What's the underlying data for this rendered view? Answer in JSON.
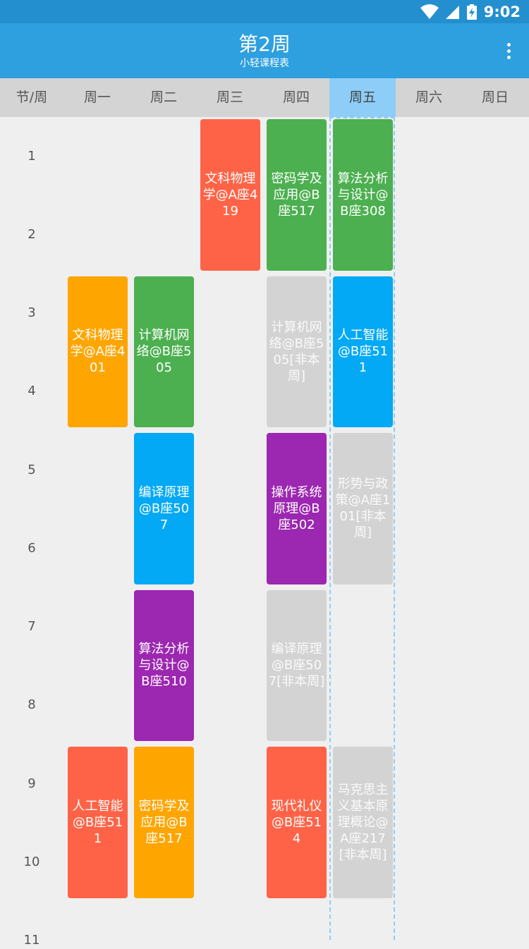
{
  "status_bar": {
    "time": "9:02",
    "icons": [
      "wifi-icon",
      "signal-icon",
      "battery-charging-icon"
    ]
  },
  "app_bar": {
    "title": "第2周",
    "subtitle": "小轻课程表",
    "menu_icon": "more-vert-icon"
  },
  "header": {
    "corner": "节/周",
    "days": [
      "周一",
      "周二",
      "周三",
      "周四",
      "周五",
      "周六",
      "周日"
    ],
    "today_index": 4,
    "today_color": "#8dcdf7"
  },
  "periods": [
    "1",
    "2",
    "3",
    "4",
    "5",
    "6",
    "7",
    "8",
    "9",
    "10",
    "11"
  ],
  "courses": [
    {
      "day": 2,
      "start": 1,
      "span": 2,
      "name": "文科物理学",
      "room": "@A座419",
      "note": "",
      "color": "#ff6347"
    },
    {
      "day": 3,
      "start": 1,
      "span": 2,
      "name": "密码学及应用",
      "room": "@B座517",
      "note": "",
      "color": "#4caf50"
    },
    {
      "day": 4,
      "start": 1,
      "span": 2,
      "name": "算法分析与设计",
      "room": "@B座308",
      "note": "",
      "color": "#4caf50"
    },
    {
      "day": 0,
      "start": 3,
      "span": 2,
      "name": "文科物理学",
      "room": "@A座401",
      "note": "",
      "color": "#ffa500"
    },
    {
      "day": 1,
      "start": 3,
      "span": 2,
      "name": "计算机网络",
      "room": "@B座505",
      "note": "",
      "color": "#4caf50"
    },
    {
      "day": 3,
      "start": 3,
      "span": 2,
      "name": "计算机网络",
      "room": "@B座505",
      "note": "[非本周]",
      "color": "#d3d3d3"
    },
    {
      "day": 4,
      "start": 3,
      "span": 2,
      "name": "人工智能",
      "room": "@B座511",
      "note": "",
      "color": "#03a9f4"
    },
    {
      "day": 1,
      "start": 5,
      "span": 2,
      "name": "编译原理",
      "room": "@B座507",
      "note": "",
      "color": "#03a9f4"
    },
    {
      "day": 3,
      "start": 5,
      "span": 2,
      "name": "操作系统原理",
      "room": "@B座502",
      "note": "",
      "color": "#9c27b0"
    },
    {
      "day": 4,
      "start": 5,
      "span": 2,
      "name": "形势与政策",
      "room": "@A座101",
      "note": "[非本周]",
      "color": "#d3d3d3"
    },
    {
      "day": 1,
      "start": 7,
      "span": 2,
      "name": "算法分析与设计",
      "room": "@B座510",
      "note": "",
      "color": "#9c27b0"
    },
    {
      "day": 3,
      "start": 7,
      "span": 2,
      "name": "编译原理",
      "room": "@B座507",
      "note": "[非本周]",
      "color": "#d3d3d3"
    },
    {
      "day": 0,
      "start": 9,
      "span": 2,
      "name": "人工智能",
      "room": "@B座511",
      "note": "",
      "color": "#ff6347"
    },
    {
      "day": 1,
      "start": 9,
      "span": 2,
      "name": "密码学及应用",
      "room": "@B座517",
      "note": "",
      "color": "#ffa500"
    },
    {
      "day": 3,
      "start": 9,
      "span": 2,
      "name": "现代礼仪",
      "room": "@B座514",
      "note": "",
      "color": "#ff6347"
    },
    {
      "day": 4,
      "start": 9,
      "span": 2,
      "name": "马克思主义基本原理概论",
      "room": "@A座217",
      "note": "[非本周]",
      "color": "#d3d3d3"
    }
  ]
}
